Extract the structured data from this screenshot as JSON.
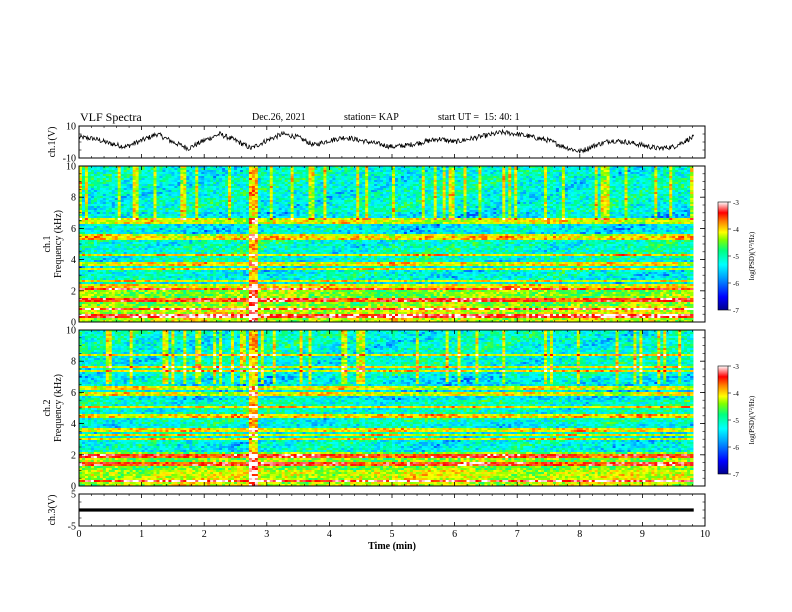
{
  "header": {
    "title": "VLF Spectra",
    "date": "Dec.26, 2021",
    "station": "station= KAP",
    "start": "start UT =  15: 40: 1"
  },
  "chart_data": [
    {
      "type": "line",
      "panel": "ch1-waveform",
      "ylabel": "ch.1(V)",
      "ylim": [
        -10,
        10
      ],
      "yticks": [
        "10",
        "-10"
      ],
      "xlim": [
        0,
        10
      ],
      "x": [
        0,
        0.25,
        0.5,
        0.75,
        1.0,
        1.25,
        1.5,
        1.75,
        2.0,
        2.25,
        2.5,
        2.75,
        3.0,
        3.25,
        3.5,
        3.75,
        4.0,
        4.25,
        4.5,
        4.75,
        5.0,
        5.25,
        5.5,
        5.75,
        6.0,
        6.25,
        6.5,
        6.75,
        7.0,
        7.25,
        7.5,
        7.75,
        8.0,
        8.25,
        8.5,
        8.75,
        9.0,
        9.25,
        9.5,
        9.75,
        9.82
      ],
      "y": [
        3,
        2,
        -1,
        -3,
        1,
        5,
        0,
        -4,
        1,
        5,
        1,
        -4,
        1,
        5,
        3,
        -2,
        1,
        3,
        1,
        -1,
        -3,
        -2,
        0,
        2,
        0,
        2,
        4,
        6,
        5,
        3,
        1,
        -3,
        -6,
        -2,
        1,
        0,
        -2,
        -4,
        -3,
        2,
        3
      ],
      "color": "#000000"
    },
    {
      "type": "heatmap",
      "panel": "ch1-spectrogram",
      "ylabel": "ch.1\nFrequency (kHz)",
      "ylim": [
        0,
        10
      ],
      "yticks": [
        "0",
        "2",
        "4",
        "6",
        "8",
        "10"
      ],
      "xlim": [
        0,
        10
      ],
      "colorbar": {
        "label": "log(PSD)(V²/Hz)",
        "range": [
          -7,
          -3
        ],
        "ticks": [
          "-3",
          "-4",
          "-5",
          "-6",
          "-7"
        ]
      },
      "band_lines_khz": [
        0.4,
        0.8,
        1.4,
        2.1,
        2.3,
        2.6,
        3.4,
        3.7,
        4.3,
        5.3,
        5.5,
        6.4,
        6.6
      ],
      "burst_minutes": [
        2.78,
        2.82
      ]
    },
    {
      "type": "heatmap",
      "panel": "ch2-spectrogram",
      "ylabel": "ch.2\nFrequency (kHz)",
      "ylim": [
        0,
        10
      ],
      "yticks": [
        "0",
        "2",
        "4",
        "6",
        "8",
        "10"
      ],
      "xlim": [
        0,
        10
      ],
      "colorbar": {
        "label": "log(PSD)(V²/Hz)",
        "range": [
          -7,
          -3
        ],
        "ticks": [
          "-3",
          "-4",
          "-5",
          "-6",
          "-7"
        ]
      },
      "band_lines_khz": [
        0.3,
        1.4,
        1.9,
        3.0,
        3.3,
        3.6,
        4.5,
        5.1,
        5.9,
        6.3,
        7.4,
        7.6,
        8.4
      ],
      "burst_minutes": [
        2.78,
        2.82
      ]
    },
    {
      "type": "line",
      "panel": "ch3-waveform",
      "ylabel": "ch.3(V)",
      "ylim": [
        -5,
        5
      ],
      "yticks": [
        "5",
        "-5"
      ],
      "xlim": [
        0,
        10
      ],
      "x": [
        0,
        9.82
      ],
      "y": [
        0,
        0
      ],
      "thick_band": [
        -0.5,
        0.5
      ]
    }
  ],
  "x_axis": {
    "label": "Time (min)",
    "ticks": [
      "0",
      "1",
      "2",
      "3",
      "4",
      "5",
      "6",
      "7",
      "8",
      "9",
      "10"
    ]
  },
  "colors": {
    "colormap": [
      "#00008b",
      "#0000ff",
      "#00a0ff",
      "#00ffff",
      "#00ff80",
      "#80ff00",
      "#ffff00",
      "#ff8000",
      "#ff0000",
      "#ffffff"
    ]
  }
}
